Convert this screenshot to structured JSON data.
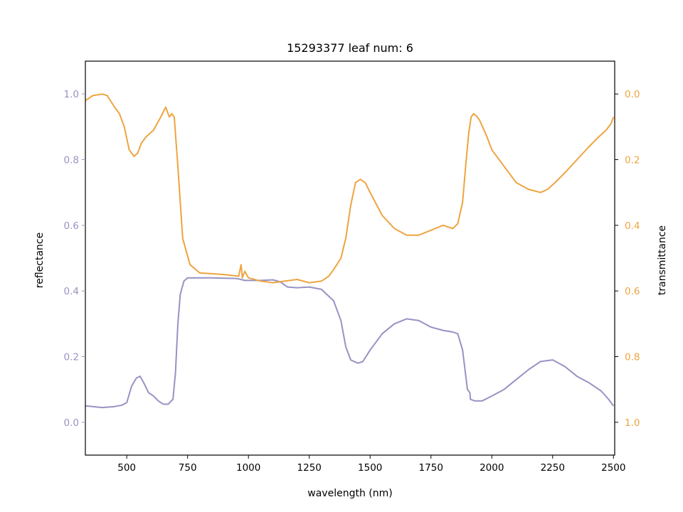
{
  "chart_data": {
    "type": "line",
    "title": "15293377 leaf num: 6",
    "xlabel": "wavelength (nm)",
    "ylabel_left": "reflectance",
    "ylabel_right": "transmittance",
    "xlim": [
      330,
      2505
    ],
    "ylim_left": [
      -0.1,
      1.1
    ],
    "ylim_right": [
      1.1,
      -0.1
    ],
    "right_axis_inverted": true,
    "grid": false,
    "x_ticks": [
      500,
      750,
      1000,
      1250,
      1500,
      1750,
      2000,
      2250,
      2500
    ],
    "y_ticks_left": [
      "0.0",
      "0.2",
      "0.4",
      "0.6",
      "0.8",
      "1.0"
    ],
    "y_ticks_right": [
      "0.0",
      "0.2",
      "0.4",
      "0.6",
      "0.8",
      "1.0"
    ],
    "colors": {
      "reflectance": "#9892c4",
      "transmittance": "#eea440"
    },
    "series": [
      {
        "name": "reflectance",
        "axis": "left",
        "color": "#9892c4",
        "x": [
          330,
          360,
          400,
          450,
          480,
          500,
          520,
          540,
          555,
          570,
          590,
          610,
          630,
          650,
          670,
          690,
          700,
          710,
          720,
          735,
          750,
          780,
          850,
          950,
          970,
          985,
          1000,
          1050,
          1100,
          1130,
          1160,
          1200,
          1250,
          1300,
          1350,
          1380,
          1400,
          1420,
          1450,
          1470,
          1500,
          1550,
          1600,
          1650,
          1700,
          1750,
          1800,
          1840,
          1860,
          1880,
          1890,
          1900,
          1910,
          1912,
          1930,
          1960,
          2000,
          2050,
          2100,
          2150,
          2200,
          2250,
          2300,
          2350,
          2400,
          2450,
          2480,
          2500
        ],
        "y": [
          0.05,
          0.048,
          0.045,
          0.048,
          0.052,
          0.06,
          0.11,
          0.135,
          0.14,
          0.12,
          0.09,
          0.08,
          0.065,
          0.055,
          0.055,
          0.07,
          0.15,
          0.3,
          0.39,
          0.43,
          0.44,
          0.44,
          0.44,
          0.438,
          0.435,
          0.432,
          0.432,
          0.432,
          0.434,
          0.428,
          0.412,
          0.41,
          0.412,
          0.405,
          0.37,
          0.31,
          0.23,
          0.19,
          0.18,
          0.185,
          0.22,
          0.27,
          0.3,
          0.315,
          0.31,
          0.29,
          0.28,
          0.275,
          0.27,
          0.22,
          0.16,
          0.1,
          0.09,
          0.07,
          0.065,
          0.065,
          0.08,
          0.1,
          0.13,
          0.16,
          0.185,
          0.19,
          0.17,
          0.14,
          0.12,
          0.095,
          0.07,
          0.05
        ]
      },
      {
        "name": "transmittance",
        "axis": "right",
        "color": "#eea440",
        "x": [
          330,
          360,
          400,
          420,
          450,
          470,
          490,
          510,
          530,
          545,
          560,
          580,
          610,
          640,
          660,
          675,
          685,
          695,
          710,
          730,
          760,
          800,
          900,
          960,
          970,
          975,
          985,
          1000,
          1050,
          1100,
          1150,
          1200,
          1250,
          1300,
          1330,
          1350,
          1380,
          1400,
          1420,
          1440,
          1460,
          1480,
          1500,
          1550,
          1600,
          1650,
          1700,
          1750,
          1800,
          1840,
          1860,
          1880,
          1895,
          1905,
          1915,
          1925,
          1935,
          1950,
          1980,
          2000,
          2050,
          2100,
          2150,
          2200,
          2230,
          2260,
          2300,
          2350,
          2400,
          2440,
          2470,
          2490,
          2500
        ],
        "y": [
          0.02,
          0.005,
          0.0,
          0.005,
          0.04,
          0.06,
          0.1,
          0.17,
          0.19,
          0.18,
          0.15,
          0.13,
          0.11,
          0.07,
          0.04,
          0.07,
          0.06,
          0.07,
          0.22,
          0.44,
          0.52,
          0.545,
          0.55,
          0.555,
          0.52,
          0.56,
          0.54,
          0.56,
          0.57,
          0.575,
          0.57,
          0.565,
          0.575,
          0.57,
          0.555,
          0.535,
          0.5,
          0.44,
          0.34,
          0.27,
          0.26,
          0.27,
          0.3,
          0.37,
          0.41,
          0.43,
          0.43,
          0.415,
          0.4,
          0.41,
          0.395,
          0.33,
          0.2,
          0.12,
          0.07,
          0.06,
          0.065,
          0.08,
          0.13,
          0.17,
          0.22,
          0.27,
          0.29,
          0.3,
          0.29,
          0.27,
          0.24,
          0.2,
          0.16,
          0.13,
          0.11,
          0.09,
          0.07
        ]
      }
    ]
  }
}
